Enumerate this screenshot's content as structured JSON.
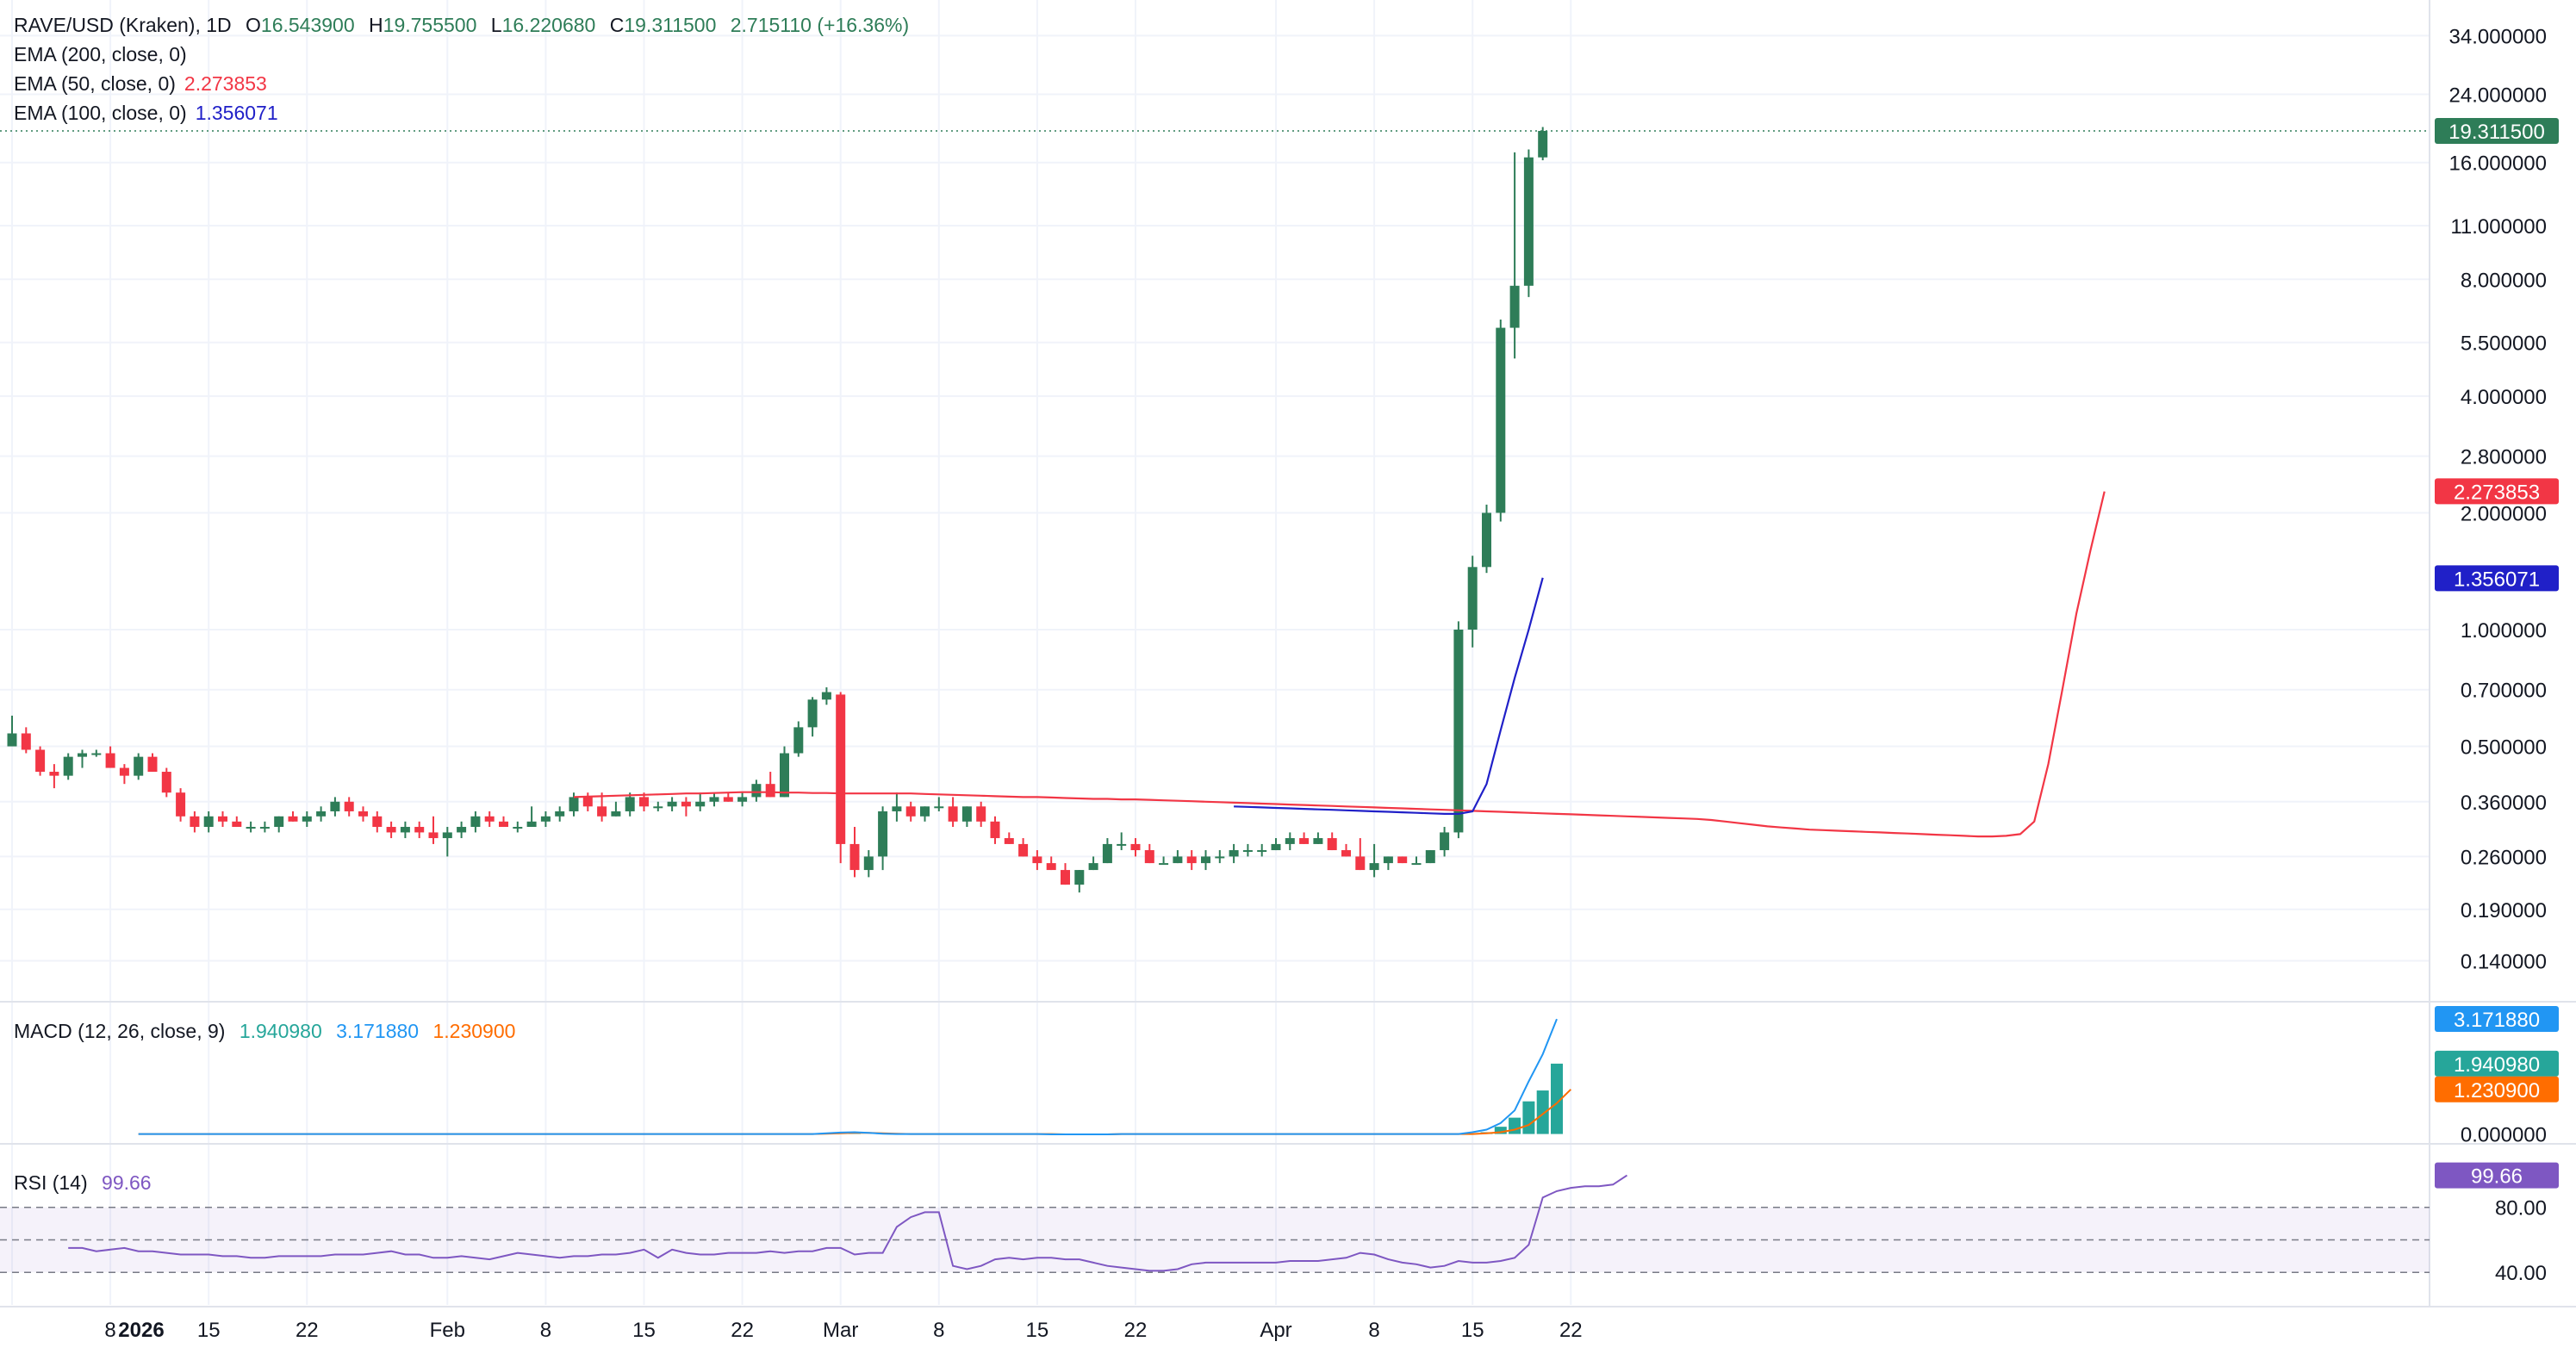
{
  "symbol_line": {
    "title": "RAVE/USD (Kraken), 1D",
    "o_label": "O",
    "o": "16.543900",
    "h_label": "H",
    "h": "19.755500",
    "l_label": "L",
    "l": "16.220680",
    "c_label": "C",
    "c": "19.311500",
    "change": "2.715110 (+16.36%)"
  },
  "ema200": {
    "label": "EMA (200, close, 0)"
  },
  "ema50": {
    "label": "EMA (50, close, 0)",
    "value": "2.273853",
    "color": "#f23645"
  },
  "ema100": {
    "label": "EMA (100, close, 0)",
    "value": "1.356071",
    "color": "#2020c8"
  },
  "macd": {
    "label": "MACD (12, 26, close, 9)",
    "hist": "1.940980",
    "macd": "3.171880",
    "signal": "1.230900",
    "hist_color": "#26a69a",
    "macd_color": "#2196f3",
    "signal_color": "#ff6d00"
  },
  "rsi": {
    "label": "RSI (14)",
    "value": "99.66",
    "color": "#7e57c2"
  },
  "colors": {
    "up": "#2e7d58",
    "down": "#f23645",
    "grid": "#f0f3fa",
    "price_tag": "#2e7d58"
  },
  "price_axis_ticks": [
    "34.000000",
    "24.000000",
    "16.000000",
    "11.000000",
    "8.000000",
    "5.500000",
    "4.000000",
    "2.800000",
    "2.000000",
    "1.000000",
    "0.700000",
    "0.500000",
    "0.360000",
    "0.260000",
    "0.190000",
    "0.140000"
  ],
  "price_tags": {
    "last": "19.311500",
    "ema50": "2.273853",
    "ema100": "1.356071"
  },
  "macd_axis_ticks": [
    "0.000000"
  ],
  "macd_tags": {
    "macd": "3.171880",
    "hist": "1.940980",
    "signal": "1.230900"
  },
  "rsi_axis_ticks": [
    "80.00",
    "40.00"
  ],
  "rsi_tag": "99.66",
  "time_axis": [
    "2026",
    "8",
    "15",
    "22",
    "Feb",
    "8",
    "15",
    "22",
    "Mar",
    "8",
    "15",
    "22",
    "Apr",
    "8",
    "15",
    "22"
  ],
  "chart_data": {
    "type": "candlestick",
    "x_start": "2026-01-01",
    "y_scale": "log",
    "ylim": [
      0.12,
      38
    ],
    "series": {
      "ohlc": [
        [
          0.5,
          0.6,
          0.5,
          0.54
        ],
        [
          0.54,
          0.56,
          0.48,
          0.49
        ],
        [
          0.49,
          0.5,
          0.42,
          0.43
        ],
        [
          0.43,
          0.45,
          0.39,
          0.42
        ],
        [
          0.42,
          0.48,
          0.41,
          0.47
        ],
        [
          0.47,
          0.49,
          0.44,
          0.48
        ],
        [
          0.48,
          0.49,
          0.47,
          0.48
        ],
        [
          0.48,
          0.5,
          0.44,
          0.44
        ],
        [
          0.44,
          0.45,
          0.4,
          0.42
        ],
        [
          0.42,
          0.48,
          0.41,
          0.47
        ],
        [
          0.47,
          0.48,
          0.43,
          0.43
        ],
        [
          0.43,
          0.44,
          0.37,
          0.38
        ],
        [
          0.38,
          0.39,
          0.32,
          0.33
        ],
        [
          0.33,
          0.34,
          0.3,
          0.31
        ],
        [
          0.31,
          0.34,
          0.3,
          0.33
        ],
        [
          0.33,
          0.34,
          0.31,
          0.32
        ],
        [
          0.32,
          0.33,
          0.31,
          0.31
        ],
        [
          0.31,
          0.32,
          0.3,
          0.31
        ],
        [
          0.31,
          0.32,
          0.3,
          0.31
        ],
        [
          0.31,
          0.33,
          0.3,
          0.33
        ],
        [
          0.33,
          0.34,
          0.32,
          0.32
        ],
        [
          0.32,
          0.34,
          0.31,
          0.33
        ],
        [
          0.33,
          0.35,
          0.32,
          0.34
        ],
        [
          0.34,
          0.37,
          0.33,
          0.36
        ],
        [
          0.36,
          0.37,
          0.33,
          0.34
        ],
        [
          0.34,
          0.35,
          0.32,
          0.33
        ],
        [
          0.33,
          0.34,
          0.3,
          0.31
        ],
        [
          0.31,
          0.32,
          0.29,
          0.3
        ],
        [
          0.3,
          0.32,
          0.29,
          0.31
        ],
        [
          0.31,
          0.32,
          0.29,
          0.3
        ],
        [
          0.3,
          0.33,
          0.28,
          0.29
        ],
        [
          0.29,
          0.31,
          0.26,
          0.3
        ],
        [
          0.3,
          0.32,
          0.29,
          0.31
        ],
        [
          0.31,
          0.34,
          0.3,
          0.33
        ],
        [
          0.33,
          0.34,
          0.31,
          0.32
        ],
        [
          0.32,
          0.33,
          0.31,
          0.31
        ],
        [
          0.31,
          0.32,
          0.3,
          0.31
        ],
        [
          0.31,
          0.35,
          0.31,
          0.32
        ],
        [
          0.32,
          0.34,
          0.31,
          0.33
        ],
        [
          0.33,
          0.35,
          0.32,
          0.34
        ],
        [
          0.34,
          0.38,
          0.33,
          0.37
        ],
        [
          0.37,
          0.38,
          0.34,
          0.35
        ],
        [
          0.35,
          0.38,
          0.32,
          0.33
        ],
        [
          0.33,
          0.36,
          0.33,
          0.34
        ],
        [
          0.34,
          0.38,
          0.33,
          0.37
        ],
        [
          0.37,
          0.38,
          0.34,
          0.35
        ],
        [
          0.35,
          0.36,
          0.34,
          0.35
        ],
        [
          0.35,
          0.37,
          0.34,
          0.36
        ],
        [
          0.36,
          0.37,
          0.33,
          0.35
        ],
        [
          0.35,
          0.38,
          0.34,
          0.36
        ],
        [
          0.36,
          0.38,
          0.35,
          0.37
        ],
        [
          0.37,
          0.38,
          0.36,
          0.36
        ],
        [
          0.36,
          0.38,
          0.35,
          0.37
        ],
        [
          0.37,
          0.41,
          0.36,
          0.4
        ],
        [
          0.4,
          0.43,
          0.37,
          0.37
        ],
        [
          0.37,
          0.5,
          0.37,
          0.48
        ],
        [
          0.48,
          0.58,
          0.47,
          0.56
        ],
        [
          0.56,
          0.67,
          0.53,
          0.66
        ],
        [
          0.66,
          0.71,
          0.64,
          0.69
        ],
        [
          0.68,
          0.69,
          0.25,
          0.28
        ],
        [
          0.28,
          0.31,
          0.23,
          0.24
        ],
        [
          0.24,
          0.27,
          0.23,
          0.26
        ],
        [
          0.26,
          0.35,
          0.24,
          0.34
        ],
        [
          0.34,
          0.38,
          0.32,
          0.35
        ],
        [
          0.35,
          0.36,
          0.32,
          0.33
        ],
        [
          0.33,
          0.35,
          0.32,
          0.35
        ],
        [
          0.35,
          0.37,
          0.34,
          0.35
        ],
        [
          0.35,
          0.37,
          0.31,
          0.32
        ],
        [
          0.32,
          0.35,
          0.31,
          0.35
        ],
        [
          0.35,
          0.36,
          0.31,
          0.32
        ],
        [
          0.32,
          0.33,
          0.28,
          0.29
        ],
        [
          0.29,
          0.3,
          0.28,
          0.28
        ],
        [
          0.28,
          0.29,
          0.26,
          0.26
        ],
        [
          0.26,
          0.27,
          0.24,
          0.25
        ],
        [
          0.25,
          0.26,
          0.24,
          0.24
        ],
        [
          0.24,
          0.25,
          0.22,
          0.22
        ],
        [
          0.22,
          0.24,
          0.21,
          0.24
        ],
        [
          0.24,
          0.26,
          0.24,
          0.25
        ],
        [
          0.25,
          0.29,
          0.25,
          0.28
        ],
        [
          0.28,
          0.3,
          0.27,
          0.28
        ],
        [
          0.28,
          0.29,
          0.26,
          0.27
        ],
        [
          0.27,
          0.28,
          0.25,
          0.25
        ],
        [
          0.25,
          0.26,
          0.25,
          0.25
        ],
        [
          0.25,
          0.27,
          0.25,
          0.26
        ],
        [
          0.26,
          0.27,
          0.24,
          0.25
        ],
        [
          0.25,
          0.27,
          0.24,
          0.26
        ],
        [
          0.26,
          0.27,
          0.25,
          0.26
        ],
        [
          0.26,
          0.28,
          0.25,
          0.27
        ],
        [
          0.27,
          0.28,
          0.26,
          0.27
        ],
        [
          0.27,
          0.28,
          0.26,
          0.27
        ],
        [
          0.27,
          0.29,
          0.27,
          0.28
        ],
        [
          0.28,
          0.3,
          0.27,
          0.29
        ],
        [
          0.29,
          0.3,
          0.28,
          0.28
        ],
        [
          0.28,
          0.3,
          0.28,
          0.29
        ],
        [
          0.29,
          0.3,
          0.27,
          0.27
        ],
        [
          0.27,
          0.28,
          0.26,
          0.26
        ],
        [
          0.26,
          0.29,
          0.24,
          0.24
        ],
        [
          0.24,
          0.28,
          0.23,
          0.25
        ],
        [
          0.25,
          0.26,
          0.24,
          0.26
        ],
        [
          0.26,
          0.26,
          0.25,
          0.25
        ],
        [
          0.25,
          0.26,
          0.25,
          0.25
        ],
        [
          0.25,
          0.27,
          0.25,
          0.27
        ],
        [
          0.27,
          0.31,
          0.26,
          0.3
        ],
        [
          0.3,
          1.05,
          0.29,
          1.0
        ],
        [
          1.0,
          1.55,
          0.9,
          1.45
        ],
        [
          1.45,
          2.1,
          1.4,
          2.0
        ],
        [
          2.0,
          6.3,
          1.9,
          6.0
        ],
        [
          6.0,
          17.0,
          5.0,
          7.7
        ],
        [
          7.7,
          17.3,
          7.2,
          16.5
        ],
        [
          16.5,
          19.76,
          16.22,
          19.31
        ]
      ],
      "ema50": [
        0.37,
        0.371,
        0.372,
        0.373,
        0.374,
        0.375,
        0.376,
        0.377,
        0.378,
        0.378,
        0.379,
        0.38,
        0.381,
        0.381,
        0.381,
        0.38,
        0.38,
        0.379,
        0.379,
        0.378,
        0.378,
        0.378,
        0.378,
        0.378,
        0.378,
        0.377,
        0.376,
        0.375,
        0.374,
        0.373,
        0.372,
        0.371,
        0.37,
        0.37,
        0.369,
        0.368,
        0.367,
        0.366,
        0.366,
        0.365,
        0.365,
        0.364,
        0.363,
        0.362,
        0.361,
        0.36,
        0.359,
        0.358,
        0.357,
        0.356,
        0.355,
        0.354,
        0.353,
        0.352,
        0.351,
        0.35,
        0.349,
        0.348,
        0.347,
        0.346,
        0.345,
        0.344,
        0.343,
        0.342,
        0.341,
        0.34,
        0.339,
        0.338,
        0.337,
        0.336,
        0.335,
        0.334,
        0.333,
        0.332,
        0.331,
        0.33,
        0.329,
        0.328,
        0.327,
        0.326,
        0.325,
        0.323,
        0.32,
        0.317,
        0.314,
        0.311,
        0.309,
        0.307,
        0.305,
        0.304,
        0.303,
        0.302,
        0.301,
        0.3,
        0.299,
        0.298,
        0.297,
        0.296,
        0.295,
        0.294,
        0.293,
        0.293,
        0.294,
        0.297,
        0.32,
        0.45,
        0.7,
        1.1,
        1.6,
        2.27
      ],
      "ema100": [
        0.35,
        0.349,
        0.348,
        0.347,
        0.346,
        0.345,
        0.344,
        0.343,
        0.342,
        0.341,
        0.34,
        0.339,
        0.338,
        0.337,
        0.336,
        0.335,
        0.335,
        0.34,
        0.4,
        0.55,
        0.75,
        1.0,
        1.36
      ]
    },
    "ema50_start_index": 40,
    "ema100_start_index": 87,
    "macd": {
      "x_start_index": 9,
      "histogram": [
        0.0,
        0.0,
        0.0,
        0.0,
        0.0,
        0.0,
        0.0,
        0.0,
        0.0,
        0.0,
        0.0,
        0.0,
        0.0,
        0.0,
        0.0,
        0.0,
        0.0,
        0.0,
        0.0,
        0.0,
        0.0,
        0.0,
        0.0,
        0.0,
        0.0,
        0.0,
        0.0,
        0.0,
        0.0,
        0.0,
        0.0,
        0.0,
        0.0,
        0.0,
        0.0,
        0.0,
        0.0,
        0.0,
        0.0,
        0.0,
        0.0,
        0.0,
        0.0,
        0.0,
        0.0,
        0.0,
        0.0,
        0.0,
        0.0,
        0.0,
        0.0,
        0.01,
        0.0,
        0.0,
        0.0,
        0.0,
        0.0,
        0.0,
        0.0,
        0.0,
        0.0,
        0.0,
        0.0,
        0.0,
        0.0,
        0.0,
        0.0,
        0.0,
        0.0,
        0.0,
        0.0,
        0.0,
        0.0,
        0.0,
        0.0,
        0.0,
        0.0,
        0.0,
        0.0,
        0.0,
        0.0,
        0.0,
        0.0,
        0.0,
        0.0,
        0.0,
        0.0,
        0.0,
        0.0,
        0.0,
        0.0,
        0.0,
        0.0,
        0.0,
        0.0,
        0.0,
        0.05,
        0.2,
        0.45,
        0.9,
        1.2,
        1.94
      ],
      "macd": [
        0.0,
        0.0,
        0.0,
        0.0,
        0.0,
        0.0,
        0.0,
        0.0,
        0.0,
        0.0,
        0.0,
        0.0,
        0.0,
        0.0,
        0.0,
        0.0,
        0.0,
        0.0,
        0.0,
        0.0,
        0.0,
        0.0,
        0.0,
        0.0,
        0.0,
        0.0,
        0.0,
        0.0,
        0.0,
        0.0,
        0.0,
        0.0,
        0.0,
        0.0,
        0.0,
        0.0,
        0.0,
        0.0,
        0.0,
        0.0,
        0.0,
        0.0,
        0.0,
        0.0,
        0.0,
        0.0,
        0.0,
        0.0,
        0.0,
        0.02,
        0.04,
        0.05,
        0.03,
        0.01,
        0.0,
        0.0,
        0.0,
        0.0,
        0.0,
        0.0,
        0.0,
        0.0,
        0.0,
        0.0,
        0.0,
        -0.01,
        -0.01,
        -0.01,
        -0.01,
        -0.01,
        0.0,
        0.0,
        0.0,
        0.0,
        0.0,
        0.0,
        0.0,
        0.0,
        0.0,
        0.0,
        0.0,
        0.0,
        0.0,
        0.0,
        0.0,
        0.0,
        0.0,
        0.0,
        0.0,
        0.0,
        0.0,
        0.0,
        0.0,
        0.0,
        0.0,
        0.05,
        0.12,
        0.3,
        0.65,
        1.45,
        2.2,
        3.17
      ],
      "signal": [
        0.0,
        0.0,
        0.0,
        0.0,
        0.0,
        0.0,
        0.0,
        0.0,
        0.0,
        0.0,
        0.0,
        0.0,
        0.0,
        0.0,
        0.0,
        0.0,
        0.0,
        0.0,
        0.0,
        0.0,
        0.0,
        0.0,
        0.0,
        0.0,
        0.0,
        0.0,
        0.0,
        0.0,
        0.0,
        0.0,
        0.0,
        0.0,
        0.0,
        0.0,
        0.0,
        0.0,
        0.0,
        0.0,
        0.0,
        0.0,
        0.0,
        0.0,
        0.0,
        0.0,
        0.0,
        0.0,
        0.0,
        0.0,
        0.0,
        0.01,
        0.02,
        0.03,
        0.03,
        0.02,
        0.01,
        0.0,
        0.0,
        0.0,
        0.0,
        0.0,
        0.0,
        0.0,
        0.0,
        0.0,
        0.0,
        0.0,
        -0.01,
        -0.01,
        -0.01,
        -0.01,
        0.0,
        0.0,
        0.0,
        0.0,
        0.0,
        0.0,
        0.0,
        0.0,
        0.0,
        0.0,
        0.0,
        0.0,
        0.0,
        0.0,
        0.0,
        0.0,
        0.0,
        0.0,
        0.0,
        0.0,
        0.0,
        0.0,
        0.0,
        0.0,
        0.0,
        0.0,
        0.02,
        0.05,
        0.12,
        0.25,
        0.55,
        0.85,
        1.23
      ]
    },
    "rsi": {
      "x_start_index": 4,
      "values": [
        55,
        55,
        53,
        54,
        55,
        53,
        53,
        52,
        51,
        51,
        51,
        50,
        50,
        49,
        49,
        50,
        50,
        50,
        50,
        51,
        51,
        51,
        52,
        53,
        51,
        51,
        49,
        49,
        50,
        49,
        48,
        50,
        52,
        51,
        50,
        49,
        50,
        50,
        51,
        51,
        52,
        54,
        49,
        54,
        52,
        51,
        51,
        52,
        52,
        52,
        53,
        52,
        53,
        53,
        55,
        55,
        51,
        52,
        52,
        68,
        74,
        77,
        77,
        44,
        42,
        44,
        48,
        49,
        48,
        49,
        49,
        48,
        48,
        46,
        44,
        43,
        42,
        41,
        41,
        42,
        45,
        46,
        46,
        46,
        46,
        46,
        46,
        47,
        47,
        47,
        48,
        49,
        52,
        51,
        48,
        46,
        45,
        43,
        44,
        47,
        46,
        46,
        47,
        49,
        57,
        86,
        90,
        92,
        93,
        93,
        94,
        99.66
      ]
    },
    "rsi_levels": [
      80,
      60,
      40
    ]
  }
}
